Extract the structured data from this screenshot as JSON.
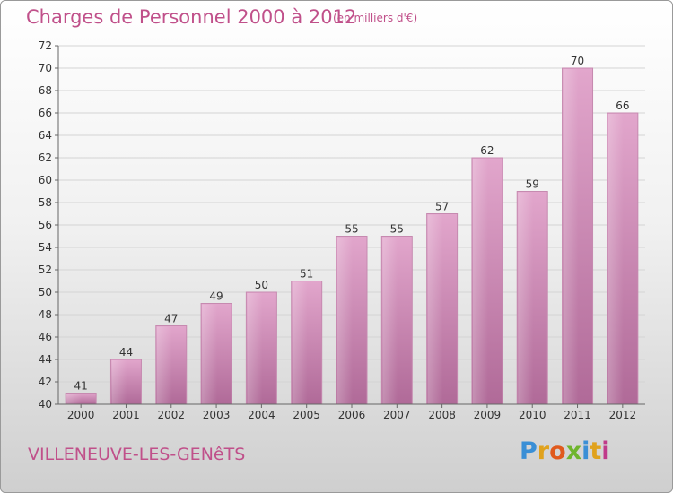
{
  "chart_data": {
    "type": "bar",
    "title": "Charges de Personnel 2000 à 2012",
    "subtitle": "(en milliers d'€)",
    "categories": [
      "2000",
      "2001",
      "2002",
      "2003",
      "2004",
      "2005",
      "2006",
      "2007",
      "2008",
      "2009",
      "2010",
      "2011",
      "2012"
    ],
    "values": [
      41,
      44,
      47,
      49,
      50,
      51,
      55,
      55,
      57,
      62,
      59,
      70,
      66
    ],
    "ylim": [
      40,
      72
    ],
    "yticks": [
      40,
      42,
      44,
      46,
      48,
      50,
      52,
      54,
      56,
      58,
      60,
      62,
      64,
      66,
      68,
      70,
      72
    ],
    "grid": true,
    "bar_color": "#d98fbc"
  },
  "place_name": "VILLENEUVE-LES-GENêTS",
  "logo": {
    "letters": [
      "P",
      "r",
      "o",
      "x",
      "i",
      "t",
      "i"
    ],
    "colors": [
      "#3a8fd6",
      "#e0a21d",
      "#e05a1d",
      "#6fb52c",
      "#3a8fd6",
      "#e0a21d",
      "#c03a8a"
    ]
  }
}
